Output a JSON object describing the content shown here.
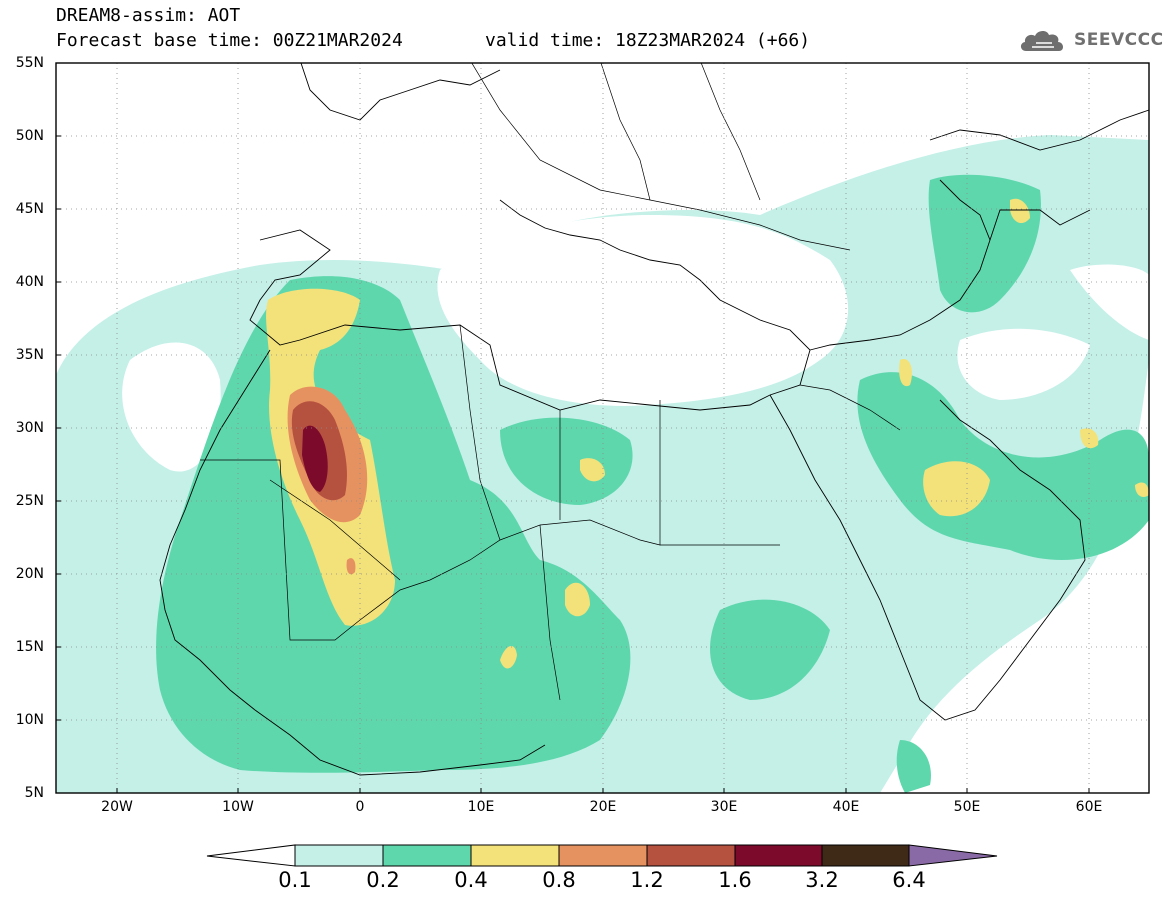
{
  "header": {
    "title_line1": "DREAM8-assim: AOT",
    "title_line2": "Forecast base time: 00Z21MAR2024",
    "valid_time": "valid time: 18Z23MAR2024 (+66)"
  },
  "logo": {
    "text": "SEEVCCC",
    "icon": "cloud-logo-icon"
  },
  "axes": {
    "y_ticks": [
      "55N",
      "50N",
      "45N",
      "40N",
      "35N",
      "30N",
      "25N",
      "20N",
      "15N",
      "10N",
      "5N"
    ],
    "x_ticks": [
      "20W",
      "10W",
      "0",
      "10E",
      "20E",
      "30E",
      "40E",
      "50E",
      "60E"
    ],
    "lon_range": [
      -25,
      65
    ],
    "lat_range": [
      5,
      55
    ]
  },
  "colorbar": {
    "labels": [
      "0.1",
      "0.2",
      "0.4",
      "0.8",
      "1.2",
      "1.6",
      "3.2",
      "6.4"
    ],
    "colors": {
      "under": "#ffffff",
      "c1": "#c4f0e8",
      "c2": "#5fd7ad",
      "c3": "#f3e27a",
      "c4": "#e69260",
      "c5": "#b5513f",
      "c6": "#7c0a2b",
      "c7": "#3e2a17",
      "over": "#8a6aa6"
    }
  }
}
